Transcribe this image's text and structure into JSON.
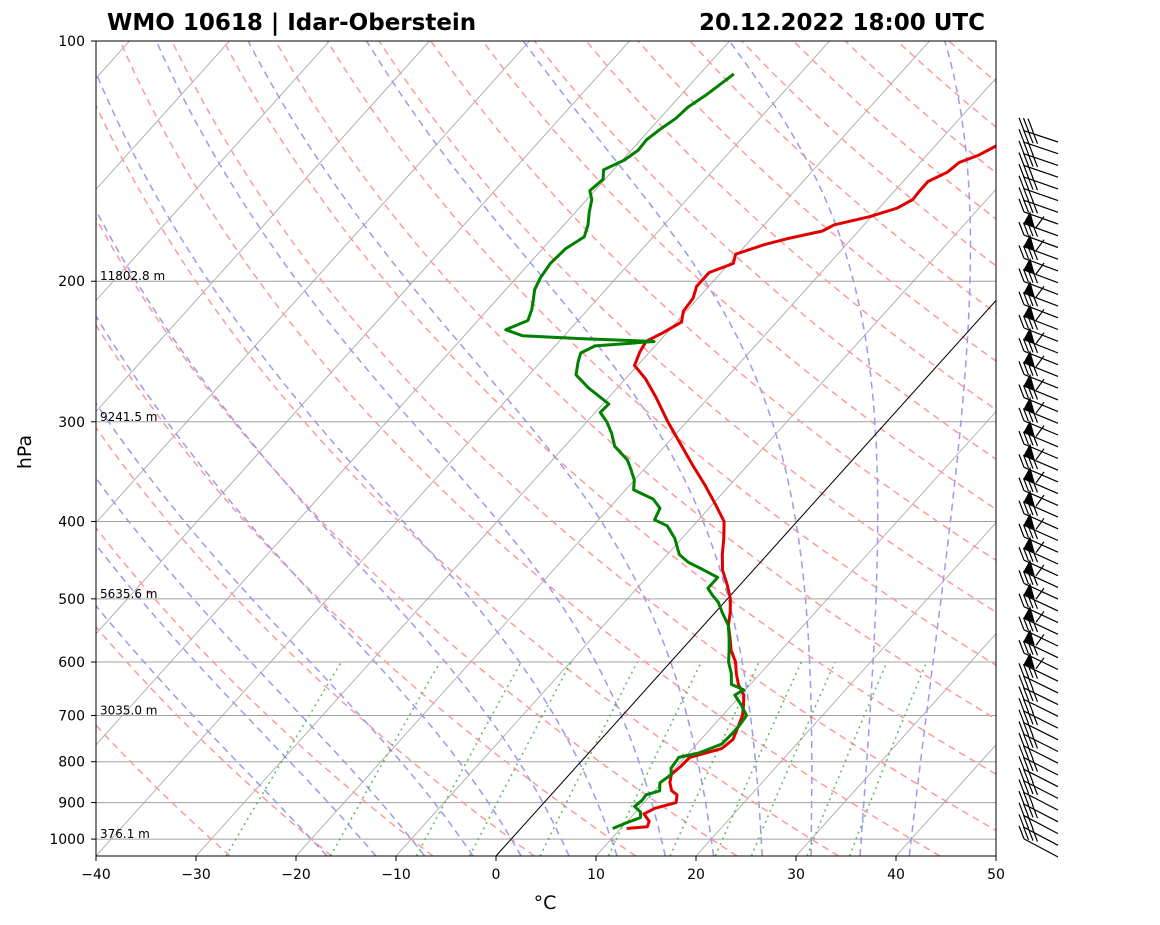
{
  "title": {
    "left": "WMO 10618 | Idar-Oberstein",
    "right": "20.12.2022 18:00 UTC"
  },
  "chart_data": {
    "type": "line",
    "subtype": "skew-T log-p sounding",
    "xlabel": "°C",
    "ylabel": "hPa",
    "xlim": [
      -40,
      50
    ],
    "ylim_hpa": [
      1050,
      100
    ],
    "x_ticks": [
      -40,
      -30,
      -20,
      -10,
      0,
      10,
      20,
      30,
      40,
      50
    ],
    "x_tick_labels": [
      "−40",
      "−30",
      "−20",
      "−10",
      "0",
      "10",
      "20",
      "30",
      "40",
      "50"
    ],
    "y_ticks": [
      100,
      200,
      300,
      400,
      500,
      600,
      700,
      800,
      900,
      1000
    ],
    "y_tick_labels": [
      "100",
      "200",
      "300",
      "400",
      "500",
      "600",
      "700",
      "800",
      "900",
      "1000"
    ],
    "height_labels": [
      {
        "p": 200,
        "text": "11802.8 m"
      },
      {
        "p": 300,
        "text": "9241.5 m"
      },
      {
        "p": 500,
        "text": "5635.6 m"
      },
      {
        "p": 700,
        "text": "3035.0 m"
      },
      {
        "p": 1000,
        "text": "376.1 m"
      }
    ],
    "series": [
      {
        "name": "Temperature",
        "color": "#e00000",
        "points": [
          [
            970,
            10.6
          ],
          [
            965,
            12.5
          ],
          [
            950,
            12.2
          ],
          [
            930,
            11.0
          ],
          [
            915,
            11.6
          ],
          [
            900,
            13.2
          ],
          [
            880,
            12.6
          ],
          [
            870,
            11.7
          ],
          [
            850,
            10.8
          ],
          [
            830,
            10.2
          ],
          [
            810,
            10.4
          ],
          [
            790,
            10.5
          ],
          [
            770,
            12.9
          ],
          [
            750,
            13.2
          ],
          [
            720,
            12.5
          ],
          [
            700,
            12.0
          ],
          [
            680,
            11.2
          ],
          [
            660,
            10.3
          ],
          [
            640,
            8.8
          ],
          [
            620,
            7.6
          ],
          [
            600,
            6.5
          ],
          [
            580,
            5.0
          ],
          [
            560,
            3.8
          ],
          [
            540,
            2.5
          ],
          [
            520,
            1.5
          ],
          [
            500,
            0.3
          ],
          [
            480,
            -1.3
          ],
          [
            460,
            -3.1
          ],
          [
            440,
            -4.5
          ],
          [
            420,
            -5.8
          ],
          [
            400,
            -7.3
          ],
          [
            380,
            -9.8
          ],
          [
            360,
            -12.5
          ],
          [
            340,
            -15.5
          ],
          [
            320,
            -18.6
          ],
          [
            300,
            -21.9
          ],
          [
            280,
            -25.2
          ],
          [
            265,
            -28.0
          ],
          [
            255,
            -30.3
          ],
          [
            245,
            -31.0
          ],
          [
            238,
            -31.3
          ],
          [
            232,
            -30.4
          ],
          [
            225,
            -29.5
          ],
          [
            218,
            -30.3
          ],
          [
            210,
            -30.5
          ],
          [
            203,
            -31.2
          ],
          [
            195,
            -31.2
          ],
          [
            190,
            -29.6
          ],
          [
            185,
            -30.2
          ],
          [
            180,
            -28.2
          ],
          [
            177,
            -26.5
          ],
          [
            173,
            -23.6
          ],
          [
            170,
            -23.0
          ],
          [
            166,
            -20.2
          ],
          [
            162,
            -18.2
          ],
          [
            158,
            -17.4
          ],
          [
            154,
            -17.5
          ],
          [
            150,
            -17.5
          ],
          [
            146,
            -16.4
          ],
          [
            142,
            -16.1
          ],
          [
            139,
            -14.8
          ],
          [
            135,
            -13.8
          ],
          [
            132,
            -11.6
          ],
          [
            129,
            -11.5
          ],
          [
            126,
            -11.0
          ],
          [
            122,
            -9.9
          ],
          [
            118,
            -9.7
          ],
          [
            114,
            -9.4
          ],
          [
            111,
            -8.2
          ],
          [
            108,
            -8.2
          ]
        ]
      },
      {
        "name": "Dewpoint",
        "color": "#008000",
        "points": [
          [
            970,
            9.2
          ],
          [
            955,
            10.0
          ],
          [
            940,
            11.0
          ],
          [
            925,
            10.5
          ],
          [
            910,
            9.4
          ],
          [
            895,
            9.6
          ],
          [
            880,
            9.5
          ],
          [
            870,
            10.5
          ],
          [
            850,
            9.8
          ],
          [
            830,
            10.2
          ],
          [
            815,
            9.6
          ],
          [
            800,
            9.5
          ],
          [
            790,
            9.4
          ],
          [
            780,
            11.0
          ],
          [
            760,
            12.5
          ],
          [
            740,
            12.6
          ],
          [
            720,
            12.6
          ],
          [
            700,
            12.4
          ],
          [
            680,
            11.0
          ],
          [
            660,
            9.4
          ],
          [
            650,
            9.8
          ],
          [
            640,
            8.1
          ],
          [
            620,
            7.1
          ],
          [
            600,
            5.8
          ],
          [
            580,
            4.8
          ],
          [
            560,
            3.7
          ],
          [
            540,
            2.5
          ],
          [
            520,
            0.7
          ],
          [
            505,
            -0.6
          ],
          [
            495,
            -1.8
          ],
          [
            485,
            -2.9
          ],
          [
            470,
            -2.9
          ],
          [
            460,
            -5.0
          ],
          [
            450,
            -7.2
          ],
          [
            440,
            -8.8
          ],
          [
            420,
            -10.7
          ],
          [
            405,
            -12.6
          ],
          [
            398,
            -14.4
          ],
          [
            385,
            -14.9
          ],
          [
            375,
            -16.4
          ],
          [
            365,
            -19.2
          ],
          [
            355,
            -20.0
          ],
          [
            345,
            -21.2
          ],
          [
            335,
            -22.5
          ],
          [
            322,
            -25.0
          ],
          [
            310,
            -26.5
          ],
          [
            300,
            -28.0
          ],
          [
            292,
            -29.5
          ],
          [
            285,
            -29.4
          ],
          [
            272,
            -32.9
          ],
          [
            262,
            -35.3
          ],
          [
            252,
            -36.3
          ],
          [
            246,
            -36.8
          ],
          [
            241,
            -36.0
          ],
          [
            238,
            -30.5
          ],
          [
            236,
            -38.1
          ],
          [
            234,
            -44.2
          ],
          [
            230,
            -46.4
          ],
          [
            224,
            -45.0
          ],
          [
            217,
            -45.6
          ],
          [
            212,
            -46.2
          ],
          [
            205,
            -47.1
          ],
          [
            198,
            -47.6
          ],
          [
            190,
            -47.9
          ],
          [
            182,
            -47.7
          ],
          [
            176,
            -46.9
          ],
          [
            170,
            -47.6
          ],
          [
            164,
            -48.6
          ],
          [
            158,
            -49.5
          ],
          [
            154,
            -50.5
          ],
          [
            149,
            -50.2
          ],
          [
            145,
            -51.0
          ],
          [
            141,
            -49.8
          ],
          [
            137,
            -49.3
          ],
          [
            133,
            -49.4
          ],
          [
            129,
            -49.0
          ],
          [
            125,
            -48.4
          ],
          [
            121,
            -48.2
          ],
          [
            117,
            -47.5
          ],
          [
            113,
            -47.0
          ],
          [
            110,
            -46.6
          ]
        ]
      }
    ],
    "wind_barbs_count": 62,
    "reference_lines": [
      "isobars",
      "isotherms",
      "dry adiabats",
      "moist adiabats",
      "mixing ratio lines",
      "0 °C isotherm"
    ]
  },
  "colors": {
    "temperature": "#e00000",
    "dewpoint": "#008000",
    "dry_adiabat": "#ff9a9a",
    "moist_adiabat": "#9a9aee",
    "mixing_ratio": "#44aa44",
    "grid": "#a0a0a0"
  }
}
